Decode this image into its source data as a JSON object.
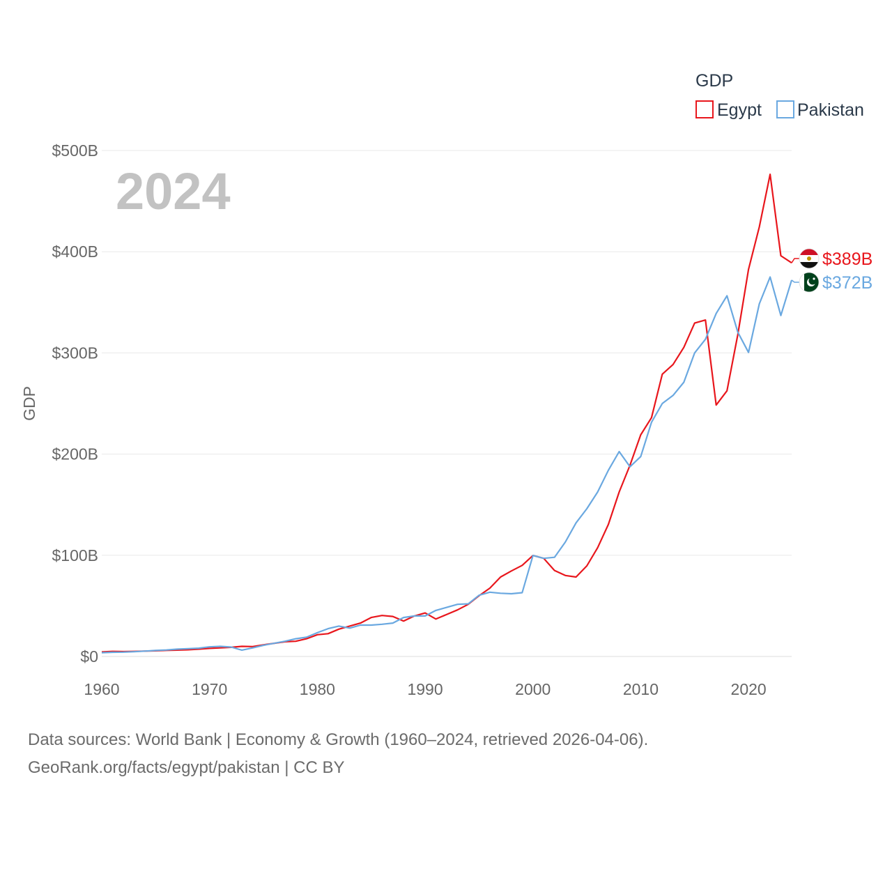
{
  "chart_data": {
    "type": "line",
    "title": "",
    "year_overlay": "2024",
    "xlabel": "",
    "ylabel": "GDP",
    "xlim": [
      1960,
      2024
    ],
    "ylim": [
      0,
      500
    ],
    "x_ticks": [
      1960,
      1970,
      1980,
      1990,
      2000,
      2010,
      2020
    ],
    "y_ticks": [
      0,
      100,
      200,
      300,
      400,
      500
    ],
    "y_tick_labels": [
      "$0",
      "$100B",
      "$200B",
      "$300B",
      "$400B",
      "$500B"
    ],
    "legend_title": "GDP",
    "legend_position": "top-right",
    "grid": true,
    "x": [
      1960,
      1961,
      1962,
      1963,
      1964,
      1965,
      1966,
      1967,
      1968,
      1969,
      1970,
      1971,
      1972,
      1973,
      1974,
      1975,
      1976,
      1977,
      1978,
      1979,
      1980,
      1981,
      1982,
      1983,
      1984,
      1985,
      1986,
      1987,
      1988,
      1989,
      1990,
      1991,
      1992,
      1993,
      1994,
      1995,
      1996,
      1997,
      1998,
      1999,
      2000,
      2001,
      2002,
      2003,
      2004,
      2005,
      2006,
      2007,
      2008,
      2009,
      2010,
      2011,
      2012,
      2013,
      2014,
      2015,
      2016,
      2017,
      2018,
      2019,
      2020,
      2021,
      2022,
      2023,
      2024
    ],
    "series": [
      {
        "name": "Egypt",
        "color": "#e8161c",
        "end_label": "$389B",
        "values": [
          4.5,
          5.0,
          4.8,
          5.0,
          5.3,
          5.6,
          6.0,
          6.3,
          6.6,
          7.2,
          8.0,
          8.5,
          9.0,
          10.0,
          9.8,
          11.5,
          13.0,
          14.5,
          15.0,
          17.5,
          21.5,
          22.5,
          27.0,
          30.0,
          33.0,
          38.5,
          40.5,
          39.5,
          35.0,
          40.0,
          43.0,
          37.0,
          41.5,
          46.0,
          51.5,
          60.0,
          67.5,
          78.5,
          84.5,
          90.0,
          99.8,
          97.0,
          85.0,
          80.0,
          78.5,
          89.5,
          107.5,
          130.5,
          162.5,
          189.0,
          219.0,
          236.0,
          279.0,
          288.5,
          305.5,
          329.5,
          332.5,
          248.5,
          262.5,
          318.0,
          382.5,
          424.5,
          476.5,
          396.0,
          389.0
        ]
      },
      {
        "name": "Pakistan",
        "color": "#6aa8e0",
        "end_label": "$372B",
        "values": [
          3.7,
          4.1,
          4.3,
          4.7,
          5.3,
          5.9,
          6.4,
          7.2,
          7.7,
          8.2,
          9.5,
          10.0,
          9.3,
          6.3,
          8.5,
          11.0,
          13.0,
          15.0,
          17.5,
          19.0,
          23.5,
          27.5,
          30.0,
          28.0,
          31.0,
          31.0,
          31.8,
          33.0,
          38.5,
          40.0,
          40.0,
          45.5,
          48.5,
          51.5,
          52.0,
          60.5,
          63.5,
          62.5,
          62.0,
          63.0,
          99.8,
          97.0,
          98.0,
          113.0,
          132.0,
          146.0,
          162.5,
          184.0,
          202.5,
          187.5,
          197.5,
          231.5,
          250.0,
          258.0,
          271.0,
          300.0,
          313.5,
          339.0,
          356.5,
          320.5,
          300.5,
          348.5,
          375.0,
          337.0,
          372.0
        ]
      }
    ]
  },
  "footer": {
    "line1": "Data sources: World Bank | Economy & Growth (1960–2024, retrieved 2026-04-06).",
    "line2": "GeoRank.org/facts/egypt/pakistan | CC BY"
  }
}
